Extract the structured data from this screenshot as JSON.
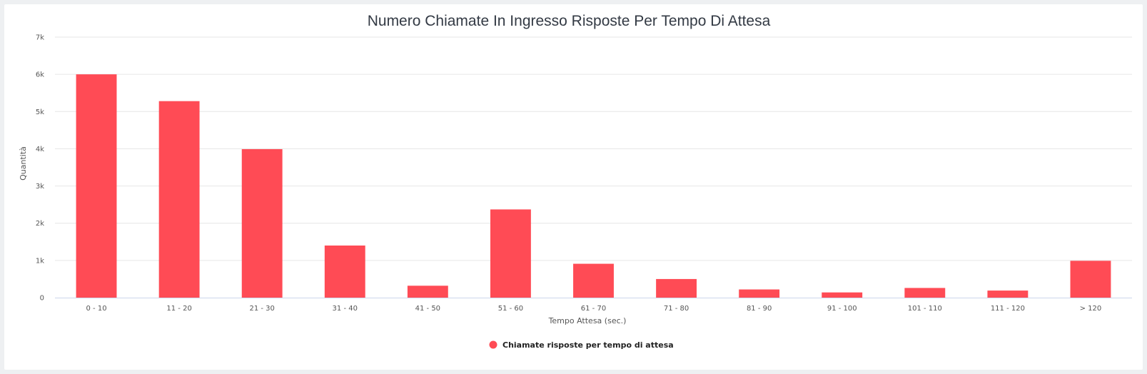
{
  "chart_data": {
    "type": "bar",
    "title": "Numero Chiamate In Ingresso Risposte Per Tempo Di Attesa",
    "xlabel": "Tempo Attesa (sec.)",
    "ylabel": "Quantità",
    "ylim": [
      0,
      7000
    ],
    "yticks": [
      0,
      1000,
      2000,
      3000,
      4000,
      5000,
      6000,
      7000
    ],
    "ytick_labels": [
      "0",
      "1k",
      "2k",
      "3k",
      "4k",
      "5k",
      "6k",
      "7k"
    ],
    "categories": [
      "0 - 10",
      "11 - 20",
      "21 - 30",
      "31 - 40",
      "41 - 50",
      "51 - 60",
      "61 - 70",
      "71 - 80",
      "81 - 90",
      "91 - 100",
      "101 - 110",
      "111 - 120",
      "> 120"
    ],
    "series": [
      {
        "name": "Chiamate risposte per tempo di attesa",
        "color": "#ff4b55",
        "values": [
          6000,
          5280,
          3990,
          1400,
          320,
          2370,
          910,
          500,
          220,
          140,
          260,
          190,
          990
        ]
      }
    ],
    "grid": true,
    "legend": "bottom-center"
  }
}
